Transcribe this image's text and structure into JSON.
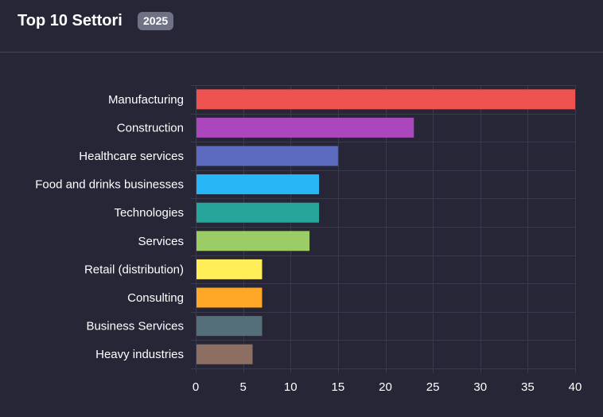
{
  "header": {
    "title": "Top 10 Settori",
    "badge": "2025"
  },
  "chart_data": {
    "type": "bar",
    "orientation": "horizontal",
    "title": "Top 10 Settori",
    "xlabel": "",
    "ylabel": "",
    "xlim": [
      0,
      40
    ],
    "xticks": [
      0,
      5,
      10,
      15,
      20,
      25,
      30,
      35,
      40
    ],
    "grid": true,
    "legend": "none",
    "categories": [
      "Manufacturing",
      "Construction",
      "Healthcare services",
      "Food and drinks businesses",
      "Technologies",
      "Services",
      "Retail (distribution)",
      "Consulting",
      "Business Services",
      "Heavy industries"
    ],
    "values": [
      40,
      23,
      15,
      13,
      13,
      12,
      7,
      7,
      7,
      6
    ],
    "colors": [
      "#ef5350",
      "#ab47bc",
      "#5c6bc0",
      "#29b6f6",
      "#26a69a",
      "#9ccc65",
      "#ffee58",
      "#ffa726",
      "#546e7a",
      "#8d6e63"
    ]
  }
}
